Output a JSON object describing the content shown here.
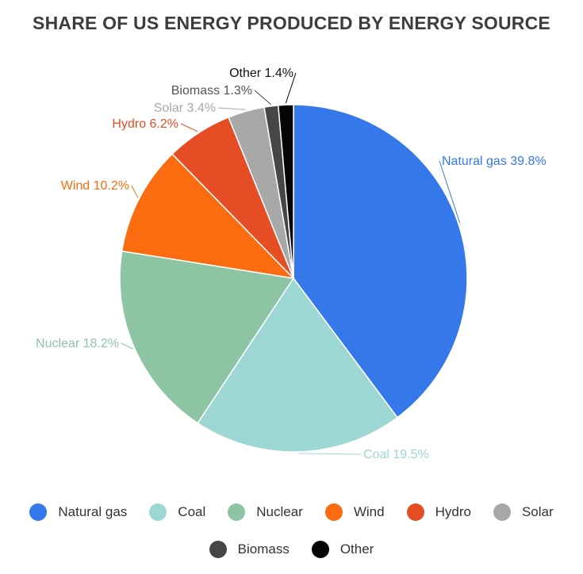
{
  "chart_data": {
    "type": "pie",
    "title": "SHARE OF US ENERGY PRODUCED BY ENERGY SOURCE",
    "slices": [
      {
        "name": "Natural gas",
        "value": 39.8,
        "label": "Natural gas 39.8%",
        "color": "#3478ea"
      },
      {
        "name": "Coal",
        "value": 19.5,
        "label": "Coal 19.5%",
        "color": "#9dd7d3"
      },
      {
        "name": "Nuclear",
        "value": 18.2,
        "label": "Nuclear 18.2%",
        "color": "#8dc5a4"
      },
      {
        "name": "Wind",
        "value": 10.2,
        "label": "Wind 10.2%",
        "color": "#fb6b0f"
      },
      {
        "name": "Hydro",
        "value": 6.2,
        "label": "Hydro 6.2%",
        "color": "#e54e25"
      },
      {
        "name": "Solar",
        "value": 3.4,
        "label": "Solar 3.4%",
        "color": "#a8a8a8"
      },
      {
        "name": "Biomass",
        "value": 1.3,
        "label": "Biomass 1.3%",
        "color": "#464646"
      },
      {
        "name": "Other",
        "value": 1.4,
        "label": "Other 1.4%",
        "color": "#050505"
      }
    ],
    "legend": {
      "placement": "bottom",
      "rows": [
        [
          "Natural gas",
          "Coal",
          "Nuclear",
          "Wind",
          "Hydro",
          "Solar"
        ],
        [
          "Biomass",
          "Other"
        ]
      ]
    }
  }
}
